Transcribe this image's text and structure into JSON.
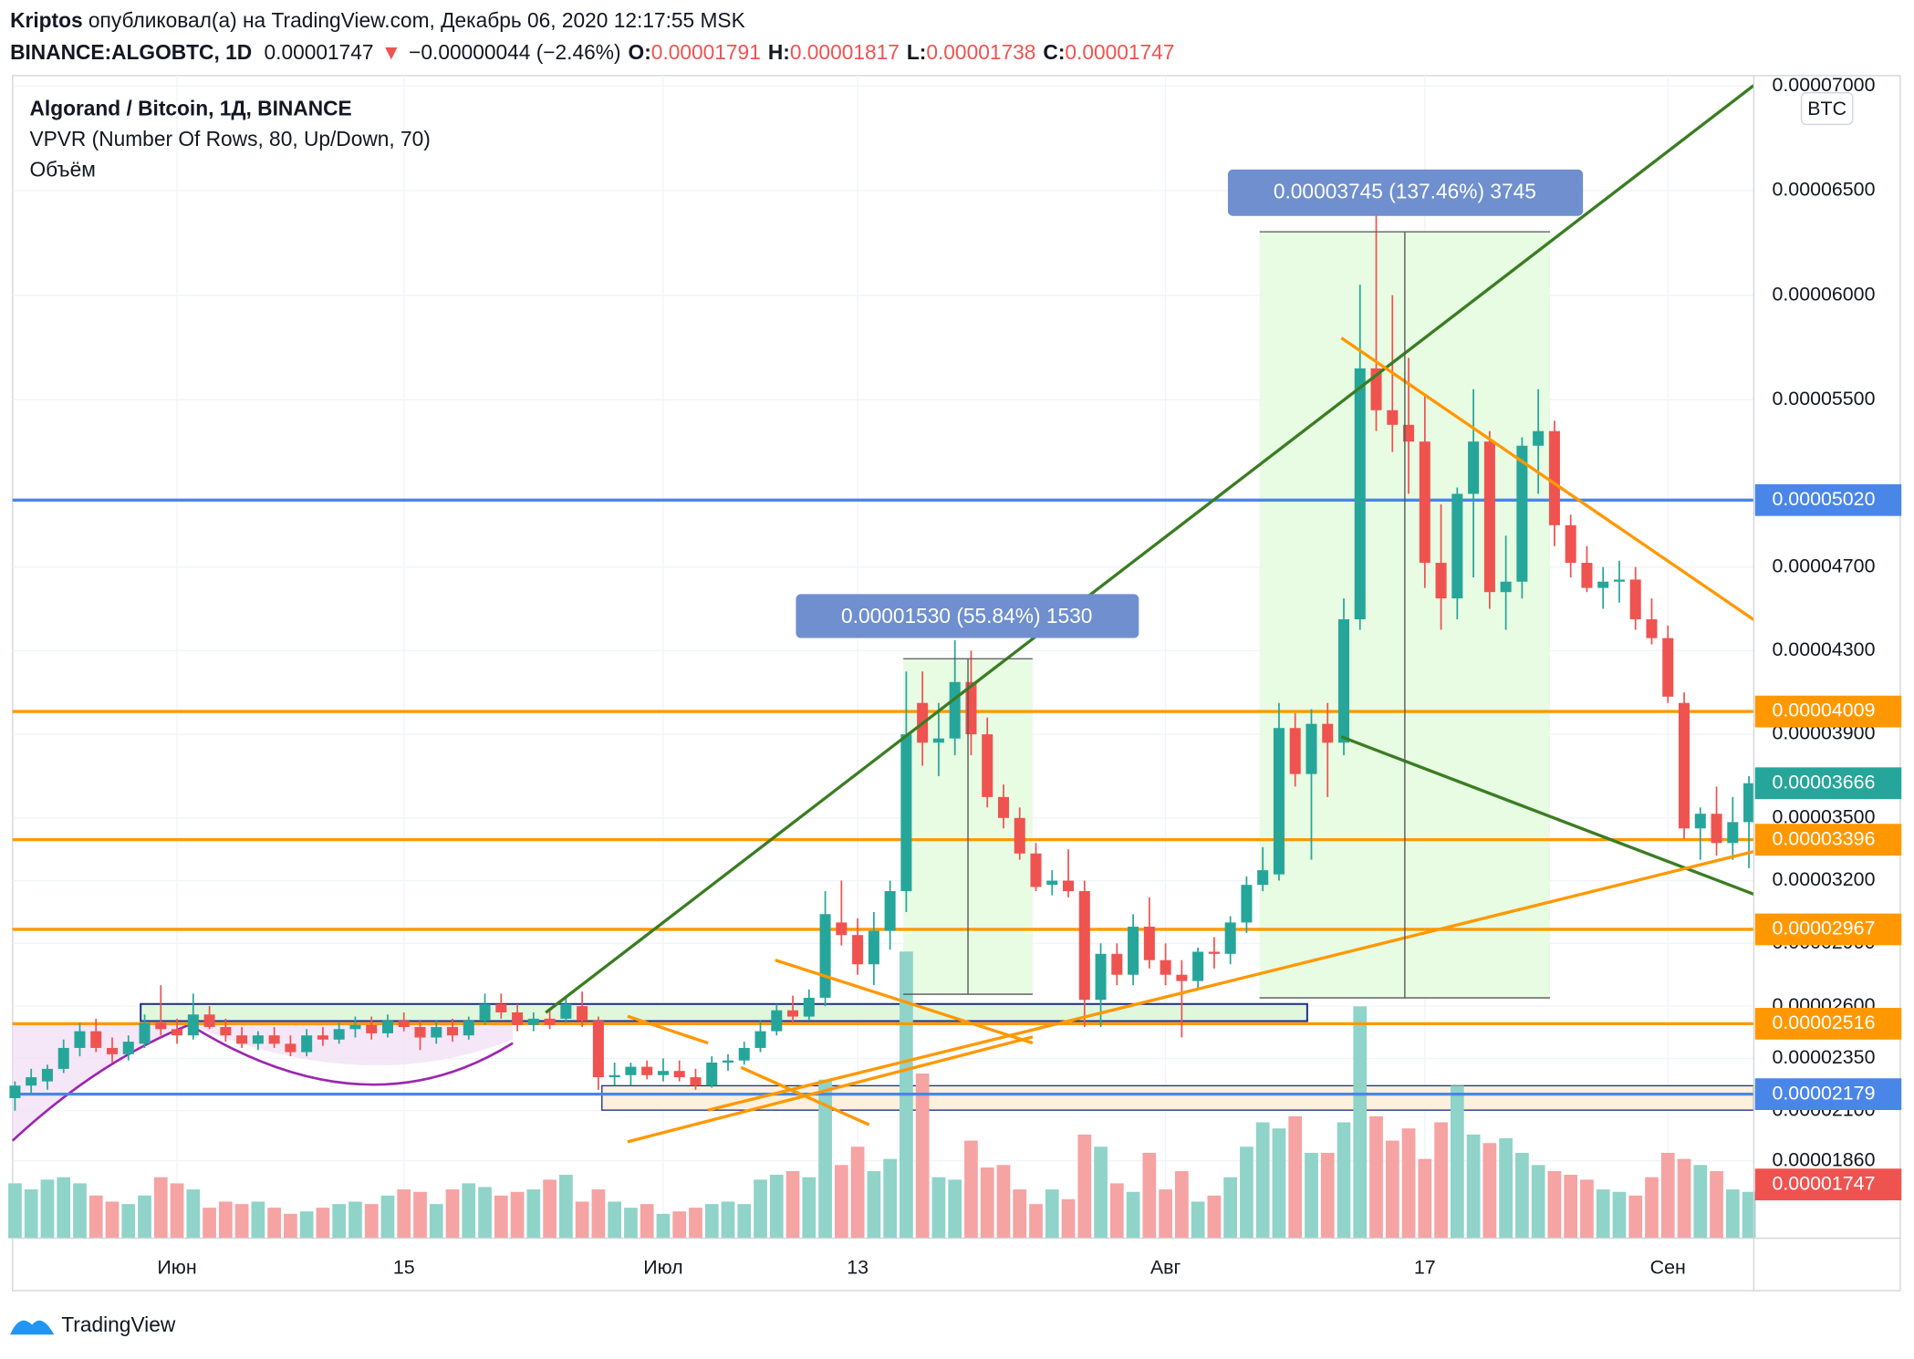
{
  "header": {
    "author": "Kriptos",
    "published": " опубликовал(а) на TradingView.com, Декабрь 06, 2020 12:17:55 MSK",
    "symbol": "BINANCE:ALGOBTC, 1D",
    "last": "0.00001747",
    "arrow": "▼",
    "change": "−0.00000044 (−2.46%)",
    "ohlc": [
      {
        "label": "O:",
        "value": "0.00001791"
      },
      {
        "label": "H:",
        "value": "0.00001817"
      },
      {
        "label": "L:",
        "value": "0.00001738"
      },
      {
        "label": "C:",
        "value": "0.00001747"
      }
    ]
  },
  "legend": {
    "title": "Algorand / Bitcoin, 1Д, BINANCE",
    "indicator": "VPVR (Number Of Rows, 80, Up/Down, 70)",
    "volume": "Объём"
  },
  "measures": [
    {
      "label": "0.00001530 (55.84%) 1530"
    },
    {
      "label": "0.00003745 (137.46%) 3745"
    }
  ],
  "footer": {
    "brand": "TradingView"
  },
  "chart_data": {
    "type": "candlestick",
    "currency": "BTC",
    "grid": true,
    "colors": {
      "up": "#26a69a",
      "down": "#ef5350",
      "volume_up": "#8fd3c9",
      "volume_down": "#f5a3a3"
    },
    "xlim": [
      -0.15,
      107.3
    ],
    "ylim": [
      1.49e-05,
      7.05e-05
    ],
    "xticks": [
      {
        "value": 10,
        "label": "Июн"
      },
      {
        "value": 24,
        "label": "15"
      },
      {
        "value": 40,
        "label": "Июл"
      },
      {
        "value": 52,
        "label": "13"
      },
      {
        "value": 71,
        "label": "Авг"
      },
      {
        "value": 87,
        "label": "17"
      },
      {
        "value": 102,
        "label": "Сен"
      }
    ],
    "yticks": [
      {
        "value": 7e-05,
        "label": "0.00007000"
      },
      {
        "value": 6.5e-05,
        "label": "0.00006500"
      },
      {
        "value": 6e-05,
        "label": "0.00006000"
      },
      {
        "value": 5.5e-05,
        "label": "0.00005500"
      },
      {
        "value": 4.7e-05,
        "label": "0.00004700"
      },
      {
        "value": 4.3e-05,
        "label": "0.00004300"
      },
      {
        "value": 3.9e-05,
        "label": "0.00003900"
      },
      {
        "value": 3.5e-05,
        "label": "0.00003500"
      },
      {
        "value": 3.2e-05,
        "label": "0.00003200"
      },
      {
        "value": 2.9e-05,
        "label": "0.00002900"
      },
      {
        "value": 2.6e-05,
        "label": "0.00002600"
      },
      {
        "value": 2.35e-05,
        "label": "0.00002350"
      },
      {
        "value": 2.1e-05,
        "label": "0.00002100"
      },
      {
        "value": 1.86e-05,
        "label": "0.00001860"
      }
    ],
    "levels": [
      {
        "value": 5.02e-05,
        "label": "0.00005020",
        "color": "#4a86e8",
        "line": true
      },
      {
        "value": 4.009e-05,
        "label": "0.00004009",
        "color": "#ff9800",
        "line": true
      },
      {
        "value": 3.666e-05,
        "label": "0.00003666",
        "color": "#26a69a",
        "line": false
      },
      {
        "value": 3.396e-05,
        "label": "0.00003396",
        "color": "#ff9800",
        "line": true
      },
      {
        "value": 2.967e-05,
        "label": "0.00002967",
        "color": "#ff9800",
        "line": true
      },
      {
        "value": 2.516e-05,
        "label": "0.00002516",
        "color": "#ff9800",
        "line": true
      },
      {
        "value": 2.179e-05,
        "label": "0.00002179",
        "color": "#4a86e8",
        "line": true
      },
      {
        "value": 1.747e-05,
        "label": "0.00001747",
        "color": "#ef5350",
        "line": false
      }
    ],
    "ohlc": [
      [
        2.16e-05,
        2.24e-05,
        2.1e-05,
        2.22e-05
      ],
      [
        2.22e-05,
        2.3e-05,
        2.18e-05,
        2.26e-05
      ],
      [
        2.24e-05,
        2.32e-05,
        2.2e-05,
        2.3e-05
      ],
      [
        2.3e-05,
        2.44e-05,
        2.28e-05,
        2.4e-05
      ],
      [
        2.4e-05,
        2.52e-05,
        2.36e-05,
        2.48e-05
      ],
      [
        2.48e-05,
        2.54e-05,
        2.38e-05,
        2.4e-05
      ],
      [
        2.4e-05,
        2.45e-05,
        2.33e-05,
        2.37e-05
      ],
      [
        2.37e-05,
        2.46e-05,
        2.34e-05,
        2.43e-05
      ],
      [
        2.42e-05,
        2.56e-05,
        2.4e-05,
        2.52e-05
      ],
      [
        2.52e-05,
        2.7e-05,
        2.46e-05,
        2.49e-05
      ],
      [
        2.49e-05,
        2.54e-05,
        2.42e-05,
        2.46e-05
      ],
      [
        2.46e-05,
        2.66e-05,
        2.44e-05,
        2.56e-05
      ],
      [
        2.56e-05,
        2.6e-05,
        2.49e-05,
        2.5e-05
      ],
      [
        2.5e-05,
        2.54e-05,
        2.43e-05,
        2.46e-05
      ],
      [
        2.46e-05,
        2.5e-05,
        2.4e-05,
        2.42e-05
      ],
      [
        2.42e-05,
        2.48e-05,
        2.39e-05,
        2.46e-05
      ],
      [
        2.46e-05,
        2.5e-05,
        2.4e-05,
        2.42e-05
      ],
      [
        2.42e-05,
        2.46e-05,
        2.36e-05,
        2.38e-05
      ],
      [
        2.38e-05,
        2.49e-05,
        2.36e-05,
        2.46e-05
      ],
      [
        2.46e-05,
        2.5e-05,
        2.41e-05,
        2.44e-05
      ],
      [
        2.44e-05,
        2.52e-05,
        2.42e-05,
        2.49e-05
      ],
      [
        2.49e-05,
        2.55e-05,
        2.45e-05,
        2.51e-05
      ],
      [
        2.51e-05,
        2.55e-05,
        2.44e-05,
        2.47e-05
      ],
      [
        2.47e-05,
        2.56e-05,
        2.45e-05,
        2.53e-05
      ],
      [
        2.53e-05,
        2.57e-05,
        2.48e-05,
        2.5e-05
      ],
      [
        2.5e-05,
        2.53e-05,
        2.39e-05,
        2.45e-05
      ],
      [
        2.45e-05,
        2.53e-05,
        2.42e-05,
        2.5e-05
      ],
      [
        2.5e-05,
        2.54e-05,
        2.43e-05,
        2.46e-05
      ],
      [
        2.46e-05,
        2.55e-05,
        2.44e-05,
        2.53e-05
      ],
      [
        2.53e-05,
        2.66e-05,
        2.51e-05,
        2.61e-05
      ],
      [
        2.61e-05,
        2.66e-05,
        2.54e-05,
        2.57e-05
      ],
      [
        2.57e-05,
        2.61e-05,
        2.48e-05,
        2.51e-05
      ],
      [
        2.51e-05,
        2.57e-05,
        2.48e-05,
        2.54e-05
      ],
      [
        2.54e-05,
        2.59e-05,
        2.49e-05,
        2.51e-05
      ],
      [
        2.54e-05,
        2.65e-05,
        2.52e-05,
        2.61e-05
      ],
      [
        2.6e-05,
        2.67e-05,
        2.5e-05,
        2.53e-05
      ],
      [
        2.53e-05,
        2.55e-05,
        2.2e-05,
        2.26e-05
      ],
      [
        2.26e-05,
        2.33e-05,
        2.22e-05,
        2.27e-05
      ],
      [
        2.27e-05,
        2.33e-05,
        2.22e-05,
        2.31e-05
      ],
      [
        2.31e-05,
        2.34e-05,
        2.25e-05,
        2.27e-05
      ],
      [
        2.27e-05,
        2.35e-05,
        2.24e-05,
        2.29e-05
      ],
      [
        2.29e-05,
        2.34e-05,
        2.24e-05,
        2.26e-05
      ],
      [
        2.26e-05,
        2.3e-05,
        2.2e-05,
        2.22e-05
      ],
      [
        2.22e-05,
        2.36e-05,
        2.21e-05,
        2.33e-05
      ],
      [
        2.33e-05,
        2.37e-05,
        2.29e-05,
        2.34e-05
      ],
      [
        2.34e-05,
        2.43e-05,
        2.32e-05,
        2.4e-05
      ],
      [
        2.4e-05,
        2.53e-05,
        2.38e-05,
        2.48e-05
      ],
      [
        2.48e-05,
        2.61e-05,
        2.46e-05,
        2.58e-05
      ],
      [
        2.58e-05,
        2.65e-05,
        2.52e-05,
        2.55e-05
      ],
      [
        2.55e-05,
        2.68e-05,
        2.53e-05,
        2.64e-05
      ],
      [
        2.64e-05,
        3.15e-05,
        2.6e-05,
        3.04e-05
      ],
      [
        3e-05,
        3.2e-05,
        2.89e-05,
        2.94e-05
      ],
      [
        2.94e-05,
        3.02e-05,
        2.75e-05,
        2.8e-05
      ],
      [
        2.8e-05,
        3.05e-05,
        2.7e-05,
        2.96e-05
      ],
      [
        2.96e-05,
        3.2e-05,
        2.87e-05,
        3.15e-05
      ],
      [
        3.15e-05,
        4.2e-05,
        3.05e-05,
        3.9e-05
      ],
      [
        4.05e-05,
        4.2e-05,
        3.75e-05,
        3.86e-05
      ],
      [
        3.86e-05,
        4.05e-05,
        3.7e-05,
        3.88e-05
      ],
      [
        3.88e-05,
        4.35e-05,
        3.8e-05,
        4.15e-05
      ],
      [
        4.15e-05,
        4.3e-05,
        3.8e-05,
        3.9e-05
      ],
      [
        3.9e-05,
        3.98e-05,
        3.55e-05,
        3.6e-05
      ],
      [
        3.6e-05,
        3.66e-05,
        3.45e-05,
        3.5e-05
      ],
      [
        3.5e-05,
        3.55e-05,
        3.3e-05,
        3.33e-05
      ],
      [
        3.33e-05,
        3.38e-05,
        3.15e-05,
        3.17e-05
      ],
      [
        3.18e-05,
        3.25e-05,
        3.13e-05,
        3.2e-05
      ],
      [
        3.2e-05,
        3.35e-05,
        3.12e-05,
        3.15e-05
      ],
      [
        3.15e-05,
        3.2e-05,
        2.5e-05,
        2.63e-05
      ],
      [
        2.63e-05,
        2.9e-05,
        2.5e-05,
        2.85e-05
      ],
      [
        2.85e-05,
        2.9e-05,
        2.7e-05,
        2.75e-05
      ],
      [
        2.75e-05,
        3.04e-05,
        2.7e-05,
        2.98e-05
      ],
      [
        2.98e-05,
        3.12e-05,
        2.78e-05,
        2.82e-05
      ],
      [
        2.82e-05,
        2.9e-05,
        2.7e-05,
        2.75e-05
      ],
      [
        2.75e-05,
        2.82e-05,
        2.45e-05,
        2.72e-05
      ],
      [
        2.72e-05,
        2.88e-05,
        2.68e-05,
        2.86e-05
      ],
      [
        2.86e-05,
        2.93e-05,
        2.78e-05,
        2.85e-05
      ],
      [
        2.85e-05,
        3.03e-05,
        2.8e-05,
        3e-05
      ],
      [
        3e-05,
        3.22e-05,
        2.95e-05,
        3.18e-05
      ],
      [
        3.18e-05,
        3.36e-05,
        3.15e-05,
        3.25e-05
      ],
      [
        3.23e-05,
        4.05e-05,
        3.2e-05,
        3.93e-05
      ],
      [
        3.93e-05,
        4e-05,
        3.65e-05,
        3.71e-05
      ],
      [
        3.71e-05,
        4.02e-05,
        3.3e-05,
        3.95e-05
      ],
      [
        3.95e-05,
        4.05e-05,
        3.6e-05,
        3.86e-05
      ],
      [
        3.86e-05,
        4.55e-05,
        3.8e-05,
        4.45e-05
      ],
      [
        4.45e-05,
        6.05e-05,
        4.4e-05,
        5.65e-05
      ],
      [
        5.65e-05,
        6.45e-05,
        5.35e-05,
        5.45e-05
      ],
      [
        5.45e-05,
        6e-05,
        5.25e-05,
        5.38e-05
      ],
      [
        5.38e-05,
        5.7e-05,
        5.05e-05,
        5.3e-05
      ],
      [
        5.3e-05,
        5.52e-05,
        4.6e-05,
        4.72e-05
      ],
      [
        4.72e-05,
        5e-05,
        4.4e-05,
        4.55e-05
      ],
      [
        4.55e-05,
        5.08e-05,
        4.45e-05,
        5.05e-05
      ],
      [
        5.05e-05,
        5.55e-05,
        4.65e-05,
        5.3e-05
      ],
      [
        5.3e-05,
        5.35e-05,
        4.5e-05,
        4.58e-05
      ],
      [
        4.58e-05,
        4.85e-05,
        4.4e-05,
        4.63e-05
      ],
      [
        4.63e-05,
        5.32e-05,
        4.55e-05,
        5.28e-05
      ],
      [
        5.28e-05,
        5.55e-05,
        5.05e-05,
        5.35e-05
      ],
      [
        5.35e-05,
        5.4e-05,
        4.8e-05,
        4.9e-05
      ],
      [
        4.9e-05,
        4.95e-05,
        4.65e-05,
        4.72e-05
      ],
      [
        4.72e-05,
        4.8e-05,
        4.58e-05,
        4.6e-05
      ],
      [
        4.6e-05,
        4.7e-05,
        4.5e-05,
        4.63e-05
      ],
      [
        4.63e-05,
        4.73e-05,
        4.53e-05,
        4.64e-05
      ],
      [
        4.64e-05,
        4.7e-05,
        4.4e-05,
        4.45e-05
      ],
      [
        4.45e-05,
        4.55e-05,
        4.33e-05,
        4.36e-05
      ],
      [
        4.36e-05,
        4.42e-05,
        4.05e-05,
        4.08e-05
      ],
      [
        4.05e-05,
        4.1e-05,
        3.4e-05,
        3.45e-05
      ],
      [
        3.45e-05,
        3.55e-05,
        3.3e-05,
        3.52e-05
      ],
      [
        3.52e-05,
        3.65e-05,
        3.32e-05,
        3.38e-05
      ],
      [
        3.38e-05,
        3.6e-05,
        3.3e-05,
        3.48e-05
      ],
      [
        3.48e-05,
        3.7e-05,
        3.26e-05,
        3.666e-05
      ]
    ],
    "volume": [
      45,
      40,
      48,
      50,
      45,
      35,
      30,
      28,
      35,
      50,
      45,
      40,
      25,
      30,
      28,
      30,
      25,
      20,
      22,
      25,
      28,
      30,
      28,
      35,
      40,
      38,
      28,
      40,
      45,
      42,
      35,
      38,
      40,
      48,
      52,
      30,
      40,
      30,
      25,
      28,
      20,
      22,
      25,
      28,
      30,
      28,
      48,
      52,
      55,
      50,
      130,
      60,
      75,
      55,
      65,
      235,
      135,
      50,
      48,
      80,
      58,
      60,
      40,
      28,
      40,
      32,
      85,
      75,
      45,
      38,
      70,
      40,
      55,
      30,
      35,
      50,
      75,
      95,
      90,
      100,
      70,
      70,
      95,
      190,
      100,
      80,
      90,
      65,
      95,
      125,
      85,
      78,
      82,
      70,
      60,
      55,
      52,
      48,
      40,
      38,
      35,
      50,
      70,
      65,
      60,
      55,
      40,
      38
    ]
  }
}
